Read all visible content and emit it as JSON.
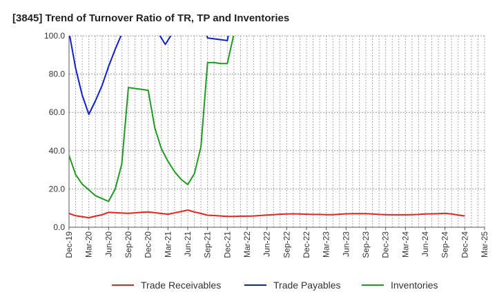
{
  "chart_data": {
    "type": "line",
    "title": "[3845]  Trend of Turnover Ratio of TR, TP and Inventories",
    "xlabel": "",
    "ylabel": "",
    "ylim": [
      0,
      100
    ],
    "y_ticks": [
      "0.0",
      "20.0",
      "40.0",
      "60.0",
      "80.0",
      "100.0"
    ],
    "x_tick_labels": [
      "Dec-19",
      "Mar-20",
      "Jun-20",
      "Sep-20",
      "Dec-20",
      "Mar-21",
      "Jun-21",
      "Sep-21",
      "Dec-21",
      "Mar-22",
      "Jun-22",
      "Sep-22",
      "Dec-22",
      "Mar-23",
      "Jun-23",
      "Sep-23",
      "Dec-23",
      "Mar-24",
      "Jun-24",
      "Sep-24",
      "Dec-24",
      "Mar-25"
    ],
    "x_months": [
      "2019-12",
      "2020-01",
      "2020-02",
      "2020-03",
      "2020-04",
      "2020-05",
      "2020-06",
      "2020-07",
      "2020-08",
      "2020-09",
      "2020-10",
      "2020-11",
      "2020-12",
      "2021-01",
      "2021-02",
      "2021-03",
      "2021-04",
      "2021-05",
      "2021-06",
      "2021-07",
      "2021-08",
      "2021-09",
      "2021-10",
      "2021-11",
      "2021-12",
      "2022-01",
      "2022-02",
      "2022-03",
      "2022-04",
      "2022-05",
      "2022-06",
      "2022-07",
      "2022-08",
      "2022-09",
      "2022-10",
      "2022-11",
      "2022-12",
      "2023-01",
      "2023-02",
      "2023-03",
      "2023-04",
      "2023-05",
      "2023-06",
      "2023-07",
      "2023-08",
      "2023-09",
      "2023-10",
      "2023-11",
      "2023-12",
      "2024-01",
      "2024-02",
      "2024-03",
      "2024-04",
      "2024-05",
      "2024-06",
      "2024-07",
      "2024-08",
      "2024-09",
      "2024-10",
      "2024-11",
      "2024-12",
      "2025-01",
      "2025-02",
      "2025-03"
    ],
    "series": [
      {
        "name": "Trade Receivables",
        "color": "#e8211c",
        "values": [
          7.2,
          6.0,
          5.5,
          5.0,
          5.8,
          6.5,
          7.8,
          7.6,
          7.4,
          7.3,
          7.5,
          7.8,
          8.0,
          7.6,
          7.2,
          6.8,
          7.5,
          8.2,
          9.0,
          8.0,
          7.2,
          6.3,
          6.1,
          5.9,
          5.7,
          5.7,
          5.8,
          5.8,
          5.9,
          6.1,
          6.4,
          6.6,
          6.8,
          6.9,
          7.0,
          6.9,
          6.8,
          6.7,
          6.7,
          6.6,
          6.6,
          6.8,
          7.0,
          7.1,
          7.1,
          7.1,
          6.9,
          6.7,
          6.6,
          6.5,
          6.5,
          6.5,
          6.6,
          6.7,
          6.9,
          7.0,
          7.1,
          7.3,
          6.9,
          6.4,
          5.9,
          null,
          null,
          null
        ]
      },
      {
        "name": "Trade Payables",
        "color": "#0a1fd6",
        "values": [
          102,
          83,
          69,
          59,
          66,
          74,
          84,
          93,
          101,
          null,
          null,
          null,
          null,
          null,
          null,
          null,
          null,
          null,
          null,
          null,
          null,
          null,
          null,
          null,
          null,
          null,
          null,
          null,
          null,
          null,
          null,
          null,
          null,
          null,
          null,
          null,
          null,
          null,
          null,
          null,
          null,
          null,
          null,
          null,
          null,
          null,
          null,
          null,
          null,
          null,
          null,
          null,
          null,
          null,
          null,
          null,
          null,
          null,
          null,
          null,
          null,
          null,
          null,
          null
        ],
        "segments": [
          [
            [
              0,
              102
            ],
            [
              1,
              83
            ],
            [
              2,
              69
            ],
            [
              3,
              59
            ],
            [
              4,
              66
            ],
            [
              5,
              74
            ],
            [
              6,
              84
            ],
            [
              7,
              93
            ],
            [
              8,
              101
            ]
          ],
          [
            [
              13.6,
              101
            ],
            [
              14.6,
              95.5
            ],
            [
              15.6,
              101
            ]
          ],
          [
            [
              20.8,
              101
            ],
            [
              21,
              98.9
            ],
            [
              24,
              97.5
            ],
            [
              24.2,
              101
            ]
          ]
        ]
      },
      {
        "name": "Inventories",
        "color": "#1e9a1e",
        "values": [
          37.5,
          27.5,
          22.5,
          19.5,
          16.5,
          15.0,
          13.5,
          20.0,
          33.0,
          73.0,
          72.5,
          72.0,
          71.5,
          52.0,
          41.0,
          34.5,
          29.0,
          25.0,
          22.3,
          28.0,
          42.0,
          86.0,
          86.0,
          85.5,
          85.5,
          null,
          null,
          null,
          null,
          null,
          null,
          null,
          null,
          null,
          null,
          null,
          null,
          null,
          null,
          null,
          null,
          null,
          null,
          null,
          null,
          null,
          null,
          null,
          null,
          null,
          null,
          null,
          null,
          null,
          null,
          null,
          null,
          null,
          null,
          null,
          null,
          null,
          null,
          null
        ],
        "tail": [
          [
            25.0,
            101
          ]
        ]
      }
    ],
    "legend": [
      "Trade Receivables",
      "Trade Payables",
      "Inventories"
    ],
    "legend_position": "bottom",
    "grid": true
  }
}
